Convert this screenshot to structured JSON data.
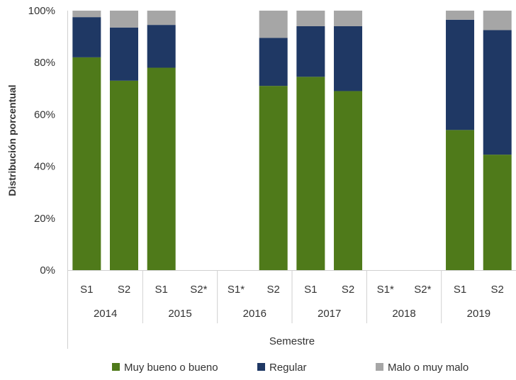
{
  "chart_data": {
    "type": "bar",
    "stacked": true,
    "ylabel": "Distribución porcentual",
    "xlabel": "Semestre",
    "ylim": [
      0,
      100
    ],
    "yticks": [
      "0%",
      "20%",
      "40%",
      "60%",
      "80%",
      "100%"
    ],
    "groups": [
      {
        "year": "2014",
        "semesters": [
          "S1",
          "S2"
        ]
      },
      {
        "year": "2015",
        "semesters": [
          "S1",
          "S2*"
        ]
      },
      {
        "year": "2016",
        "semesters": [
          "S1*",
          "S2"
        ]
      },
      {
        "year": "2017",
        "semesters": [
          "S1",
          "S2"
        ]
      },
      {
        "year": "2018",
        "semesters": [
          "S1*",
          "S2*"
        ]
      },
      {
        "year": "2019",
        "semesters": [
          "S1",
          "S2"
        ]
      }
    ],
    "categories": [
      "2014 S1",
      "2014 S2",
      "2015 S1",
      "2015 S2*",
      "2016 S1*",
      "2016 S2",
      "2017 S1",
      "2017 S2",
      "2018 S1*",
      "2018 S2*",
      "2019 S1",
      "2019 S2"
    ],
    "series": [
      {
        "name": "Muy bueno o bueno",
        "color": "#4f7a1a",
        "values": [
          82,
          73,
          78,
          null,
          null,
          71,
          74.5,
          69,
          null,
          null,
          54,
          44.5
        ]
      },
      {
        "name": "Regular",
        "color": "#1f3864",
        "values": [
          15.5,
          20.5,
          16.5,
          null,
          null,
          18.5,
          19.5,
          25,
          null,
          null,
          42.5,
          48
        ]
      },
      {
        "name": "Malo o muy malo",
        "color": "#a6a6a6",
        "values": [
          2.5,
          6.5,
          5.5,
          null,
          null,
          10.5,
          6,
          6,
          null,
          null,
          3.5,
          7.5
        ]
      }
    ],
    "legend": "bottom",
    "grid": false
  }
}
